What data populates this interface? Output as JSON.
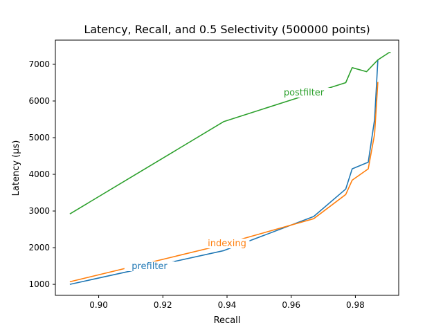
{
  "chart_data": {
    "type": "line",
    "title": "Latency, Recall, and 0.5 Selectivity (500000 points)",
    "xlabel": "Recall",
    "ylabel": "Latency (µs)",
    "xlim": [
      0.8865,
      0.9935
    ],
    "ylim": [
      700,
      7660
    ],
    "xticks": [
      0.9,
      0.92,
      0.94,
      0.96,
      0.98
    ],
    "xtick_labels": [
      "0.90",
      "0.92",
      "0.94",
      "0.96",
      "0.98"
    ],
    "yticks": [
      1000,
      2000,
      3000,
      4000,
      5000,
      6000,
      7000
    ],
    "ytick_labels": [
      "1000",
      "2000",
      "3000",
      "4000",
      "5000",
      "6000",
      "7000"
    ],
    "grid": false,
    "series": [
      {
        "name": "prefilter",
        "color": "#1f77b4",
        "x": [
          0.891,
          0.939,
          0.967,
          0.977,
          0.979,
          0.984,
          0.986,
          0.987
        ],
        "y": [
          1000,
          1920,
          2850,
          3600,
          4150,
          4330,
          5500,
          7120
        ]
      },
      {
        "name": "indexing",
        "color": "#ff7f0e",
        "x": [
          0.891,
          0.935,
          0.967,
          0.977,
          0.979,
          0.984,
          0.986,
          0.987
        ],
        "y": [
          1070,
          2000,
          2790,
          3450,
          3840,
          4150,
          5100,
          6520
        ]
      },
      {
        "name": "postfilter",
        "color": "#2ca02c",
        "x": [
          0.891,
          0.939,
          0.959,
          0.977,
          0.979,
          0.9835,
          0.987,
          0.9905,
          0.991
        ],
        "y": [
          2920,
          5440,
          6000,
          6500,
          6910,
          6800,
          7120,
          7320,
          7320
        ]
      }
    ]
  }
}
